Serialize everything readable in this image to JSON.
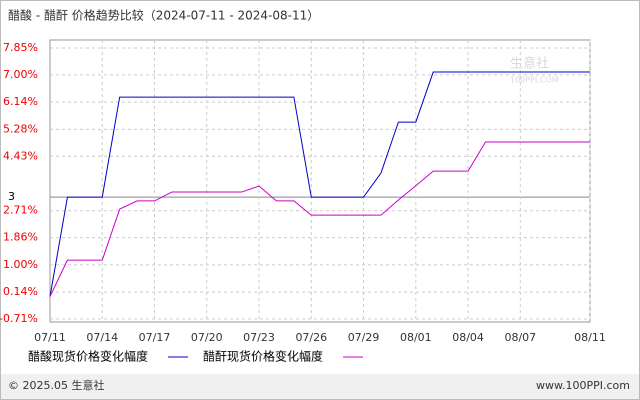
{
  "chart_data": {
    "type": "line",
    "title": "醋酸 - 醋酐 价格趋势比较（2024-07-11 - 2024-08-11）",
    "categories": [
      "07/11",
      null,
      null,
      "07/14",
      null,
      null,
      "07/17",
      null,
      null,
      "07/20",
      null,
      null,
      "07/23",
      null,
      null,
      "07/26",
      null,
      null,
      "07/29",
      null,
      null,
      "08/01",
      null,
      null,
      "08/04",
      null,
      null,
      "08/07",
      null,
      null,
      null,
      "08/11"
    ],
    "series": [
      {
        "name": "醋酸现货价格变化幅度",
        "color": "#0000cc",
        "values": [
          0,
          3.14,
          3.14,
          3.14,
          6.3,
          6.3,
          6.3,
          6.3,
          6.3,
          6.3,
          6.3,
          6.3,
          6.3,
          6.3,
          6.3,
          3.14,
          3.14,
          3.14,
          3.14,
          3.9,
          5.51,
          5.51,
          7.09,
          7.09,
          7.09,
          7.09,
          7.09,
          7.09,
          7.09,
          7.09,
          7.09,
          7.09
        ]
      },
      {
        "name": "醋酐现货价格变化幅度",
        "color": "#cc00cc",
        "values": [
          0,
          1.15,
          1.15,
          1.15,
          2.76,
          3.02,
          3.02,
          3.3,
          3.3,
          3.3,
          3.3,
          3.3,
          3.49,
          3.02,
          3.02,
          2.57,
          2.57,
          2.57,
          2.57,
          2.57,
          3.05,
          3.5,
          3.96,
          3.96,
          3.96,
          4.88,
          4.88,
          4.88,
          4.88,
          4.88,
          4.88,
          4.88
        ]
      }
    ],
    "ylim": [
      -0.71,
      7.85
    ],
    "yticks": [
      {
        "value": -0.71,
        "label": "-0.71%"
      },
      {
        "value": 0.14,
        "label": "0.14%"
      },
      {
        "value": 1.0,
        "label": "1.00%"
      },
      {
        "value": 1.86,
        "label": "1.86%"
      },
      {
        "value": 2.71,
        "label": "2.71%"
      },
      {
        "value": 4.43,
        "label": "4.43%"
      },
      {
        "value": 5.28,
        "label": "5.28%"
      },
      {
        "value": 6.14,
        "label": "6.14%"
      },
      {
        "value": 7.0,
        "label": "7.00%"
      },
      {
        "value": 7.85,
        "label": "7.85%"
      }
    ],
    "reference": {
      "value": 3.14,
      "label": "3"
    },
    "grid": true,
    "watermark": [
      "生意社",
      "100PPI.COM"
    ],
    "footer": {
      "left": "© 2025.05 生意社",
      "right": "www.100PPI.com"
    }
  }
}
